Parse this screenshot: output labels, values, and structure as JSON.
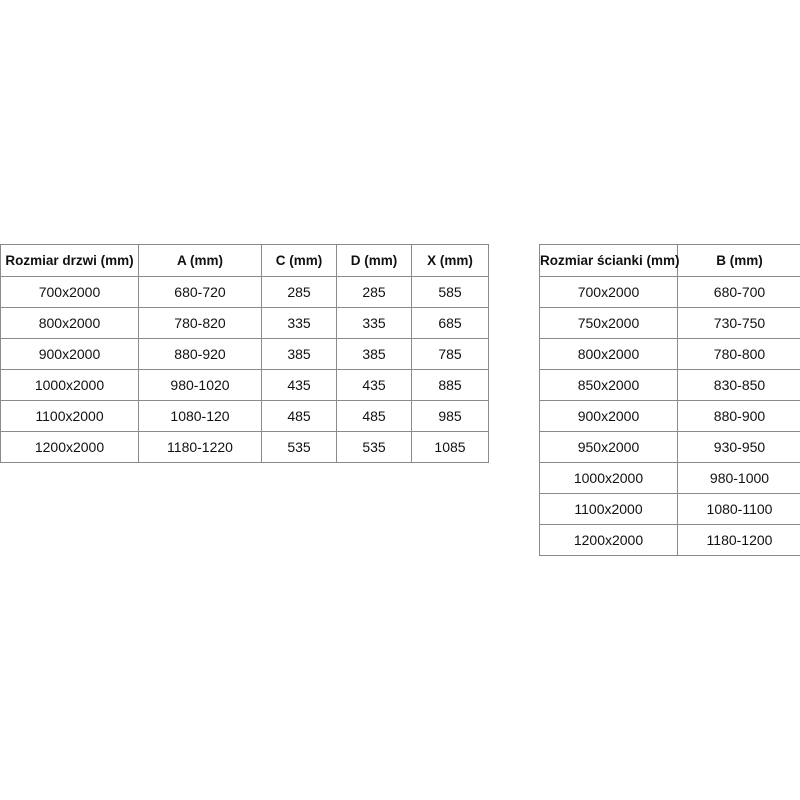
{
  "door_table": {
    "headers": [
      "Rozmiar drzwi (mm)",
      "A (mm)",
      "C (mm)",
      "D (mm)",
      "X (mm)"
    ],
    "rows": [
      [
        "700x2000",
        "680-720",
        "285",
        "285",
        "585"
      ],
      [
        "800x2000",
        "780-820",
        "335",
        "335",
        "685"
      ],
      [
        "900x2000",
        "880-920",
        "385",
        "385",
        "785"
      ],
      [
        "1000x2000",
        "980-1020",
        "435",
        "435",
        "885"
      ],
      [
        "1100x2000",
        "1080-120",
        "485",
        "485",
        "985"
      ],
      [
        "1200x2000",
        "1180-1220",
        "535",
        "535",
        "1085"
      ]
    ]
  },
  "wall_table": {
    "headers": [
      "Rozmiar ścianki (mm)",
      "B (mm)"
    ],
    "rows": [
      [
        "700x2000",
        "680-700"
      ],
      [
        "750x2000",
        "730-750"
      ],
      [
        "800x2000",
        "780-800"
      ],
      [
        "850x2000",
        "830-850"
      ],
      [
        "900x2000",
        "880-900"
      ],
      [
        "950x2000",
        "930-950"
      ],
      [
        "1000x2000",
        "980-1000"
      ],
      [
        "1100x2000",
        "1080-1100"
      ],
      [
        "1200x2000",
        "1180-1200"
      ]
    ]
  }
}
